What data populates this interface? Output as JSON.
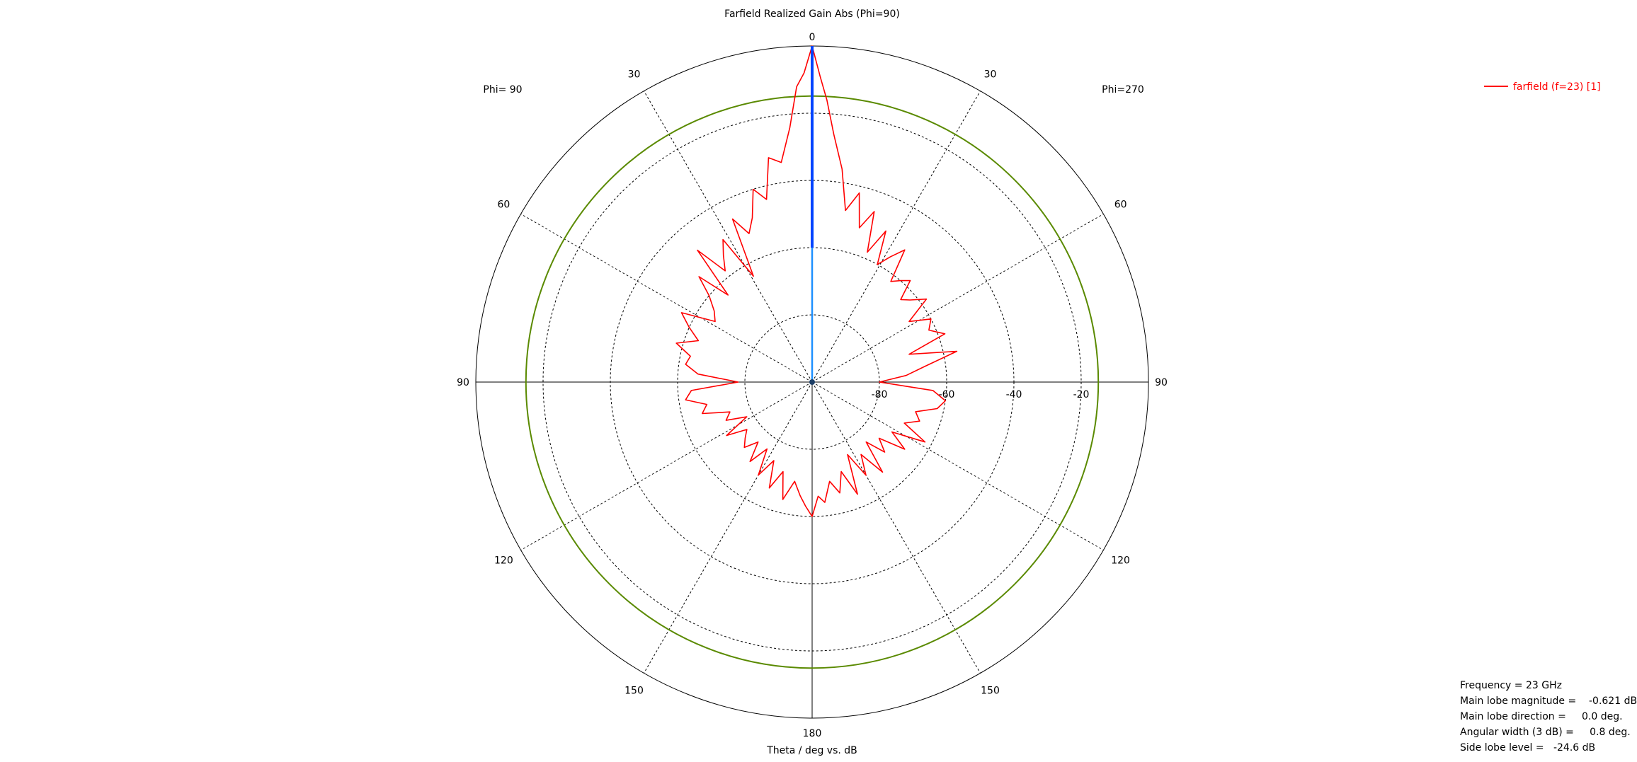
{
  "chart_data": {
    "type": "polar",
    "title": "Farfield Realized Gain Abs (Phi=90)",
    "xlabel": "Theta / deg vs. dB",
    "phi_left_label": "Phi= 90",
    "phi_right_label": "Phi=270",
    "radial_axis": {
      "min": -100,
      "max": 0,
      "ticks": [
        -80,
        -60,
        -40,
        -20
      ],
      "tick_labels": [
        "-80",
        "-60",
        "-40",
        "-20"
      ]
    },
    "angle_labels": [
      {
        "deg": 0,
        "text": "0"
      },
      {
        "deg": 30,
        "text": "30"
      },
      {
        "deg": 60,
        "text": "60"
      },
      {
        "deg": 90,
        "text": "90"
      },
      {
        "deg": 120,
        "text": "120"
      },
      {
        "deg": 150,
        "text": "150"
      },
      {
        "deg": 180,
        "text": "180"
      },
      {
        "deg": -30,
        "text": "30"
      },
      {
        "deg": -60,
        "text": "60"
      },
      {
        "deg": -90,
        "text": "90"
      },
      {
        "deg": -120,
        "text": "120"
      },
      {
        "deg": -150,
        "text": "150"
      }
    ],
    "reference_circle_db": -14.9,
    "main_lobe_direction_line": {
      "theta_deg": 0,
      "db": 0
    },
    "legend": [
      {
        "name": "farfield (f=23) [1]",
        "color": "#ff0000"
      }
    ],
    "series": [
      {
        "name": "farfield (f=23) [1]",
        "color": "#ff0000",
        "theta_deg": [
          -180,
          -177,
          -174,
          -170,
          -166,
          -162,
          -158,
          -154,
          -150,
          -146,
          -142,
          -138,
          -134,
          -130,
          -126,
          -122,
          -118,
          -114,
          -110,
          -106,
          -102,
          -98,
          -94,
          -90,
          -86,
          -82,
          -78,
          -74,
          -70,
          -66,
          -62,
          -58,
          -54,
          -50,
          -47,
          -44,
          -41,
          -38,
          -35,
          -32,
          -29,
          -26,
          -23,
          -20,
          -17,
          -14,
          -11,
          -8,
          -5,
          -3,
          -1.5,
          0,
          1.5,
          3,
          5,
          8,
          11,
          14,
          17,
          20,
          23,
          26,
          29,
          32,
          35,
          38,
          41,
          44,
          47,
          50,
          54,
          58,
          62,
          66,
          70,
          74,
          78,
          82,
          86,
          90,
          94,
          98,
          102,
          106,
          110,
          114,
          118,
          122,
          126,
          130,
          134,
          138,
          142,
          146,
          150,
          154,
          158,
          162,
          166,
          170,
          174,
          177
        ],
        "values_db": [
          -60,
          -63,
          -66,
          -70,
          -64,
          -72,
          -66,
          -74,
          -68,
          -76,
          -70,
          -76,
          -72,
          -74,
          -76,
          -70,
          -78,
          -72,
          -74,
          -66,
          -68,
          -62,
          -64,
          -78,
          -66,
          -62,
          -63,
          -58,
          -64,
          -60,
          -56,
          -66,
          -64,
          -60,
          -54,
          -64,
          -48,
          -58,
          -54,
          -50,
          -64,
          -46,
          -52,
          -48,
          -40,
          -44,
          -32,
          -34,
          -24,
          -12,
          -8,
          0,
          -9,
          -16,
          -26,
          -36,
          -48,
          -42,
          -52,
          -46,
          -58,
          -50,
          -60,
          -56,
          -52,
          -62,
          -60,
          -58,
          -64,
          -62,
          -58,
          -66,
          -60,
          -62,
          -58,
          -70,
          -56,
          -66,
          -72,
          -80,
          -64,
          -60,
          -62,
          -68,
          -66,
          -70,
          -62,
          -72,
          -66,
          -74,
          -70,
          -76,
          -66,
          -74,
          -68,
          -76,
          -64,
          -72,
          -66,
          -70,
          -64,
          -66
        ]
      }
    ]
  },
  "info": {
    "frequency": "Frequency = 23 GHz",
    "main_lobe_magnitude": "Main lobe magnitude =    -0.621 dB",
    "main_lobe_direction": "Main lobe direction =     0.0 deg.",
    "angular_width": "Angular width (3 dB) =     0.8 deg.",
    "side_lobe_level": "Side lobe level =   -24.6 dB"
  }
}
